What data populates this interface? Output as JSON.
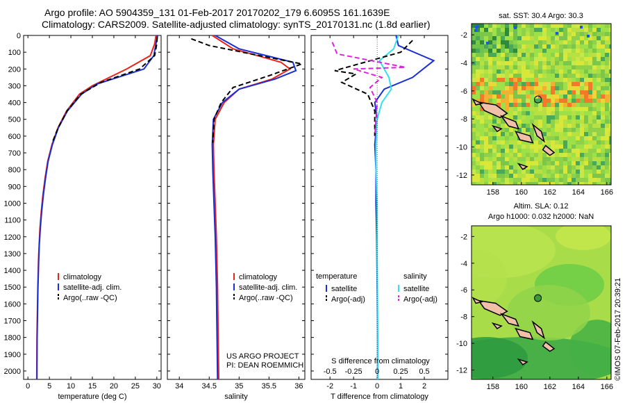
{
  "header": {
    "line1": "Argo profile: AO 5904359_131 01-Feb-2017 20170202_179 6.6095S 161.1639E",
    "line2": "Climatology: CARS2009. Satellite-adjusted climatology: synTS_20170131.nc (1.8d earlier)"
  },
  "credit": "©IMOS 07-Feb-2017 20:39:21",
  "colors": {
    "climatology": "#e8241a",
    "satellite": "#1a2ed8",
    "argo": "#000000",
    "sat_salinity": "#33e0ee",
    "argo_salinity": "#e020e0"
  },
  "chart_data": [
    {
      "type": "line",
      "panel": "temperature",
      "xlabel": "temperature (deg C)",
      "ylabel": "",
      "xlim": [
        -1,
        31
      ],
      "ylim": [
        2050,
        0
      ],
      "xticks": [
        0,
        5,
        10,
        15,
        20,
        25,
        30
      ],
      "yticks": [
        0,
        100,
        200,
        300,
        400,
        500,
        600,
        700,
        800,
        900,
        1000,
        1100,
        1200,
        1300,
        1400,
        1500,
        1600,
        1700,
        1800,
        1900,
        2000
      ],
      "legend": [
        "climatology",
        "satellite-adj. clim.",
        "Argo(..raw -QC)"
      ],
      "series": [
        {
          "name": "climatology",
          "color": "#e8241a",
          "dash": false,
          "x": [
            29.8,
            29.5,
            28.5,
            23,
            15,
            12,
            9,
            7,
            5.6,
            4.6,
            4,
            3.5,
            3.1,
            2.8,
            2.6,
            2.45,
            2.3,
            2.2,
            2.1,
            2.05
          ],
          "y": [
            0,
            50,
            120,
            200,
            300,
            350,
            450,
            550,
            650,
            750,
            850,
            950,
            1050,
            1150,
            1250,
            1350,
            1500,
            1650,
            1800,
            2050
          ]
        },
        {
          "name": "satellite-adj. clim.",
          "color": "#1a2ed8",
          "dash": false,
          "x": [
            30.2,
            29.8,
            29.3,
            27,
            16,
            12.5,
            9.2,
            7.1,
            5.7,
            4.7,
            4.1,
            3.6,
            3.2,
            2.9,
            2.65,
            2.5,
            2.35,
            2.25,
            2.15,
            2.1
          ],
          "y": [
            0,
            50,
            120,
            200,
            290,
            350,
            450,
            550,
            650,
            750,
            850,
            950,
            1050,
            1150,
            1250,
            1350,
            1500,
            1650,
            1800,
            2050
          ]
        },
        {
          "name": "Argo(..raw -QC)",
          "color": "#000000",
          "dash": true,
          "x": [
            30.1,
            30.0,
            29.5,
            26,
            17,
            12.3,
            9.1,
            7.05,
            5.65
          ],
          "y": [
            10,
            50,
            120,
            200,
            280,
            350,
            450,
            550,
            640
          ]
        }
      ]
    },
    {
      "type": "line",
      "panel": "salinity",
      "xlabel": "salinity",
      "xlim": [
        33.8,
        36.1
      ],
      "ylim": [
        2050,
        0
      ],
      "xticks": [
        34,
        34.5,
        35,
        35.5,
        36
      ],
      "legend": [
        "climatology",
        "satellite-adj. clim.",
        "Argo(..raw -QC)"
      ],
      "annotation": [
        "US ARGO PROJECT",
        "PI: DEAN ROEMMICH"
      ],
      "series": [
        {
          "name": "climatology",
          "color": "#e8241a",
          "dash": false,
          "x": [
            34.55,
            34.9,
            35.7,
            35.85,
            35.55,
            35.0,
            34.75,
            34.6,
            34.57,
            34.58,
            34.6,
            34.62,
            34.64,
            34.65,
            34.66
          ],
          "y": [
            0,
            80,
            160,
            200,
            260,
            320,
            400,
            500,
            650,
            800,
            1000,
            1200,
            1500,
            1800,
            2050
          ]
        },
        {
          "name": "satellite-adj. clim.",
          "color": "#1a2ed8",
          "dash": false,
          "x": [
            34.6,
            35.0,
            35.9,
            35.95,
            35.6,
            35.0,
            34.72,
            34.57,
            34.55,
            34.56,
            34.58,
            34.6,
            34.62,
            34.63,
            34.64
          ],
          "y": [
            0,
            80,
            160,
            210,
            260,
            320,
            400,
            500,
            650,
            800,
            1000,
            1200,
            1500,
            1800,
            2050
          ]
        },
        {
          "name": "Argo(..raw -QC)",
          "color": "#000000",
          "dash": true,
          "x": [
            34.2,
            34.5,
            35.2,
            36.05,
            35.5,
            34.9,
            34.7,
            34.58,
            34.56
          ],
          "y": [
            20,
            60,
            110,
            170,
            240,
            310,
            400,
            500,
            640
          ]
        }
      ]
    },
    {
      "type": "line",
      "panel": "differences",
      "xlabel": "T difference from climatology",
      "xlabel_top": "S difference from climatology",
      "xlim": [
        -2.8,
        3.0
      ],
      "ylim": [
        2050,
        0
      ],
      "xticks": [
        -2,
        -1,
        0,
        1,
        2
      ],
      "xticks_s": [
        -0.5,
        -0.25,
        0,
        0.25,
        0.5
      ],
      "legend_left_title": "temperature",
      "legend_right_title": "salinity",
      "legend": [
        "satellite",
        "Argo(-adj)",
        "satellite",
        "Argo(-adj)"
      ],
      "series": [
        {
          "name": "satellite",
          "color": "#1a2ed8",
          "dash": false,
          "x": [
            0.8,
            0.9,
            2.4,
            1.5,
            0.3,
            -0.1,
            0.0,
            -0.1,
            -0.05,
            -0.05,
            -0.02,
            0.0,
            0.02,
            0.02
          ],
          "y": [
            0,
            60,
            150,
            250,
            320,
            400,
            500,
            650,
            800,
            1000,
            1200,
            1500,
            1800,
            2050
          ]
        },
        {
          "name": "satellite",
          "color": "#33e0ee",
          "dash": false,
          "x": [
            0.9,
            0.7,
            0.1,
            0.5,
            0.6,
            0.2,
            0.0,
            -0.05,
            -0.05,
            0.0,
            0.0,
            0.02,
            0.02
          ],
          "y": [
            0,
            80,
            150,
            250,
            320,
            400,
            500,
            650,
            800,
            1000,
            1300,
            1700,
            2050
          ]
        },
        {
          "name": "Argo(-adj)",
          "color": "#000000",
          "dash": true,
          "x": [
            1.5,
            1.0,
            -1.8,
            -0.9,
            -1.5,
            -0.4,
            -0.1,
            -0.1
          ],
          "y": [
            30,
            100,
            210,
            230,
            280,
            350,
            450,
            600
          ]
        },
        {
          "name": "Argo(-adj)",
          "color": "#e020e0",
          "dash": true,
          "x": [
            -1.9,
            -1.7,
            1.2,
            -1.0,
            0.2,
            -0.3,
            0.0,
            -0.1
          ],
          "y": [
            40,
            110,
            190,
            200,
            250,
            310,
            400,
            600
          ]
        }
      ]
    },
    {
      "type": "heatmap",
      "panel": "sst_map",
      "title": "sat. SST: 30.4 Argo: 30.3",
      "xlim": [
        156.5,
        166.3
      ],
      "ylim": [
        -12.7,
        -1.2
      ],
      "xticks": [
        158,
        160,
        162,
        164,
        166
      ],
      "yticks": [
        -2,
        -4,
        -6,
        -8,
        -10,
        -12
      ],
      "marker": {
        "lon": 161.16,
        "lat": -6.61
      }
    },
    {
      "type": "heatmap",
      "panel": "sla_map",
      "title_lines": [
        "Altim. SLA: 0.12",
        "Argo h1000: 0.032 h2000: NaN"
      ],
      "xlim": [
        156.5,
        166.3
      ],
      "ylim": [
        -12.7,
        -1.2
      ],
      "xticks": [
        158,
        160,
        162,
        164,
        166
      ],
      "yticks": [
        -2,
        -4,
        -6,
        -8,
        -10,
        -12
      ],
      "marker": {
        "lon": 161.16,
        "lat": -6.61
      }
    }
  ]
}
